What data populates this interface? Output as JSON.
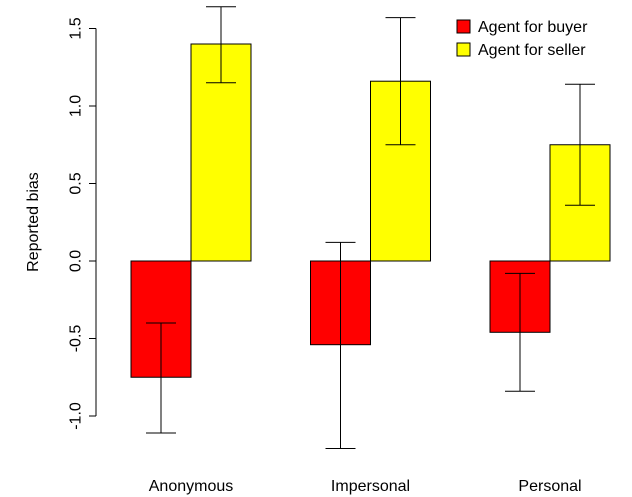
{
  "chart_data": {
    "type": "bar",
    "title": "",
    "xlabel": "",
    "ylabel": "Reported bias",
    "ylim": [
      -1.2,
      1.65
    ],
    "yticks": [
      "-1.0",
      "-0.5",
      "0.0",
      "0.5",
      "1.0",
      "1.5"
    ],
    "categories": [
      "Anonymous",
      "Impersonal",
      "Personal"
    ],
    "grid": false,
    "legend_position": "top-right",
    "series": [
      {
        "name": "Agent for buyer",
        "color": "#ff0000",
        "values": [
          -0.75,
          -0.54,
          -0.46
        ],
        "error_low": [
          -1.11,
          -1.21,
          -0.84
        ],
        "error_high": [
          -0.4,
          0.12,
          -0.08
        ]
      },
      {
        "name": "Agent for seller",
        "color": "#ffff00",
        "values": [
          1.4,
          1.16,
          0.75
        ],
        "error_low": [
          1.15,
          0.75,
          0.36
        ],
        "error_high": [
          1.64,
          1.57,
          1.14
        ]
      }
    ]
  }
}
